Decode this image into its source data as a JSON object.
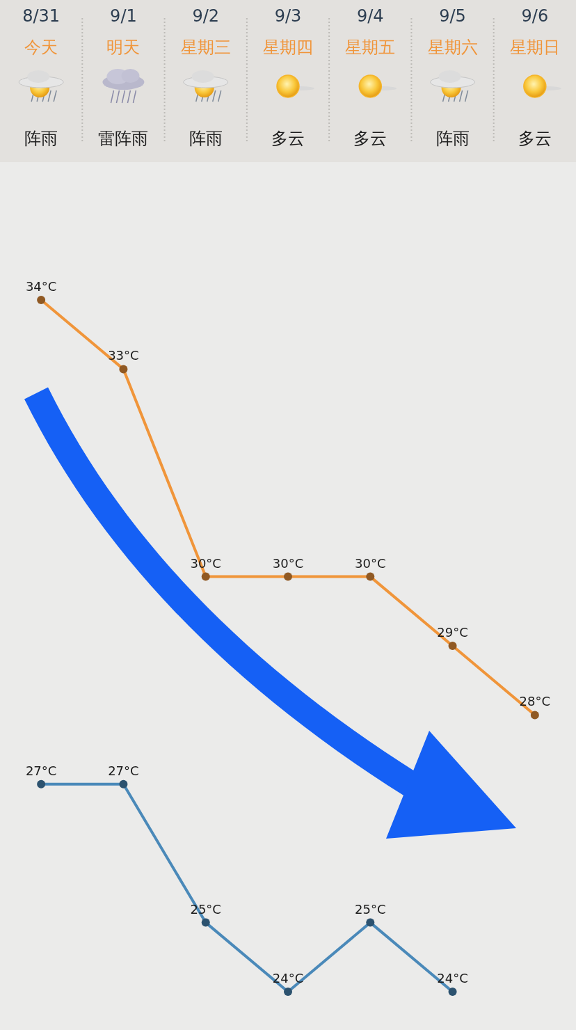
{
  "chart_data": {
    "type": "line",
    "categories": [
      "8/31\n今天",
      "9/1\n明天",
      "9/2\n星期三",
      "9/3\n星期四",
      "9/4\n星期五",
      "9/5\n星期六",
      "9/6\n星期日"
    ],
    "series": [
      {
        "color": "#f0953a",
        "values": [
          34,
          33,
          30,
          30,
          30,
          29,
          28
        ],
        "value_labels": [
          "34°C",
          "33°C",
          "30°C",
          "30°C",
          "30°C",
          "29°C",
          "28°C"
        ]
      },
      {
        "color": "#4a89b9",
        "values": [
          27,
          27,
          25,
          24,
          25,
          24,
          null
        ],
        "value_labels": [
          "27°C",
          "27°C",
          "25°C",
          "24°C",
          "25°C",
          "24°C",
          null
        ]
      }
    ],
    "tick_labels": "x",
    "marker": "circle",
    "line_style": "solid",
    "annotations": [
      "阵雨",
      "雷阵雨",
      "阵雨",
      "多云",
      "多云",
      "阵雨",
      "多云"
    ]
  }
}
